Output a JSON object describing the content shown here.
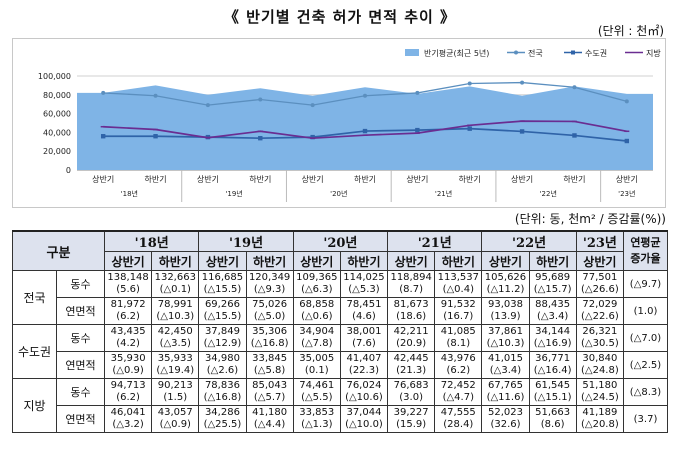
{
  "title": "《 반기별 건축 허가 면적 추이 》",
  "unit_top": "(단위 : 천㎡)",
  "unit_table": "(단위: 동, 천m² / 증감률(%))",
  "colors": {
    "area": "#7fb4e6",
    "nation": "#5b8fbf",
    "metro": "#2f63a8",
    "local": "#6a2d91"
  },
  "chart_data": {
    "type": "line",
    "categories": [
      "상반기",
      "하반기",
      "상반기",
      "하반기",
      "상반기",
      "하반기",
      "상반기",
      "하반기",
      "상반기",
      "하반기",
      "상반기"
    ],
    "year_labels": [
      "'18년",
      "'19년",
      "'20년",
      "'21년",
      "'22년",
      "'23년"
    ],
    "ylim": [
      0,
      100000
    ],
    "yticks": [
      "0",
      "20,000",
      "40,000",
      "60,000",
      "80,000",
      "100,000"
    ],
    "series": [
      {
        "name": "반기평균(최근 5년)",
        "kind": "area",
        "values": [
          82000,
          90000,
          80000,
          87000,
          79000,
          88000,
          81000,
          89000,
          79000,
          89000,
          81000
        ]
      },
      {
        "name": "전국",
        "kind": "line",
        "values": [
          82000,
          79000,
          69000,
          75000,
          69000,
          79000,
          82000,
          92000,
          93000,
          88000,
          73000
        ]
      },
      {
        "name": "수도권",
        "kind": "line",
        "values": [
          35930,
          35933,
          34980,
          33845,
          35005,
          41407,
          42445,
          43976,
          41015,
          36771,
          30840
        ]
      },
      {
        "name": "지방",
        "kind": "line",
        "values": [
          46041,
          43057,
          34286,
          41180,
          33853,
          37044,
          39227,
          47555,
          52023,
          51663,
          41189
        ]
      }
    ]
  },
  "table": {
    "header": {
      "gubun": "구분",
      "years": [
        "'18년",
        "'19년",
        "'20년",
        "'21년",
        "'22년",
        "'23년"
      ],
      "halves": [
        "상반기",
        "하반기",
        "상반기",
        "하반기",
        "상반기",
        "하반기",
        "상반기",
        "하반기",
        "상반기",
        "하반기",
        "상반기"
      ],
      "avg_line1": "연평균",
      "avg_line2": "증가율"
    },
    "regions": [
      {
        "name": "전국",
        "rows": [
          {
            "metric": "동수",
            "values": [
              "138,148",
              "132,663",
              "116,685",
              "120,349",
              "109,365",
              "114,025",
              "118,894",
              "113,537",
              "105,626",
              "95,689",
              "77,501"
            ],
            "changes": [
              "(5.6)",
              "(△0.1)",
              "(△15.5)",
              "(△9.3)",
              "(△6.3)",
              "(△5.3)",
              "(8.7)",
              "(△0.4)",
              "(△11.2)",
              "(△15.7)",
              "(△26.6)"
            ],
            "growth": "(△9.7)"
          },
          {
            "metric": "연면적",
            "values": [
              "81,972",
              "78,991",
              "69,266",
              "75,026",
              "68,858",
              "78,451",
              "81,673",
              "91,532",
              "93,038",
              "88,435",
              "72,029"
            ],
            "changes": [
              "(6.2)",
              "(△10.3)",
              "(△15.5)",
              "(△5.0)",
              "(△0.6)",
              "(4.6)",
              "(18.6)",
              "(16.7)",
              "(13.9)",
              "(△3.4)",
              "(△22.6)"
            ],
            "growth": "(1.0)"
          }
        ]
      },
      {
        "name": "수도권",
        "rows": [
          {
            "metric": "동수",
            "values": [
              "43,435",
              "42,450",
              "37,849",
              "35,306",
              "34,904",
              "38,001",
              "42,211",
              "41,085",
              "37,861",
              "34,144",
              "26,321"
            ],
            "changes": [
              "(4.2)",
              "(△3.5)",
              "(△12.9)",
              "(△16.8)",
              "(△7.8)",
              "(7.6)",
              "(20.9)",
              "(8.1)",
              "(△10.3)",
              "(△16.9)",
              "(△30.5)"
            ],
            "growth": "(△7.0)"
          },
          {
            "metric": "연면적",
            "values": [
              "35,930",
              "35,933",
              "34,980",
              "33,845",
              "35,005",
              "41,407",
              "42,445",
              "43,976",
              "41,015",
              "36,771",
              "30,840"
            ],
            "changes": [
              "(△0.9)",
              "(△19.4)",
              "(△2.6)",
              "(△5.8)",
              "(0.1)",
              "(22.3)",
              "(21.3)",
              "(6.2)",
              "(△3.4)",
              "(△16.4)",
              "(△24.8)"
            ],
            "growth": "(△2.5)"
          }
        ]
      },
      {
        "name": "지방",
        "rows": [
          {
            "metric": "동수",
            "values": [
              "94,713",
              "90,213",
              "78,836",
              "85,043",
              "74,461",
              "76,024",
              "76,683",
              "72,452",
              "67,765",
              "61,545",
              "51,180"
            ],
            "changes": [
              "(6.2)",
              "(1.5)",
              "(△16.8)",
              "(△5.7)",
              "(△5.5)",
              "(△10.6)",
              "(3.0)",
              "(△4.7)",
              "(△11.6)",
              "(△15.1)",
              "(△24.5)"
            ],
            "growth": "(△8.3)"
          },
          {
            "metric": "연면적",
            "values": [
              "46,041",
              "43,057",
              "34,286",
              "41,180",
              "33,853",
              "37,044",
              "39,227",
              "47,555",
              "52,023",
              "51,663",
              "41,189"
            ],
            "changes": [
              "(△3.2)",
              "(△0.9)",
              "(△25.5)",
              "(△4.4)",
              "(△1.3)",
              "(△10.0)",
              "(15.9)",
              "(28.4)",
              "(32.6)",
              "(8.6)",
              "(△20.8)"
            ],
            "growth": "(3.7)"
          }
        ]
      }
    ]
  }
}
